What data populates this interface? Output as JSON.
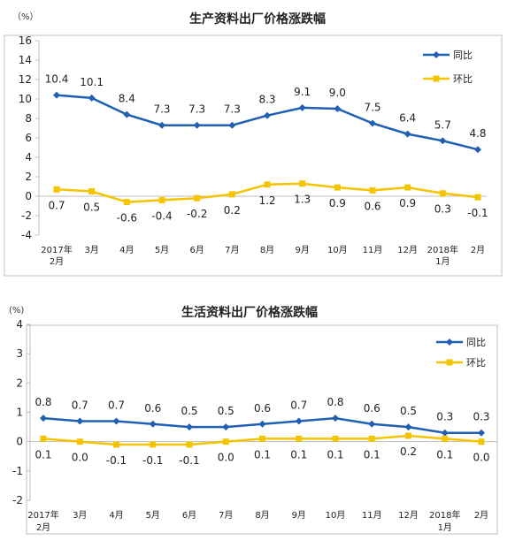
{
  "chart_data": [
    {
      "type": "line",
      "title": "生产资料出厂价格涨跌幅",
      "unit": "（%）",
      "ylim": [
        -4,
        16
      ],
      "yticks": [
        "16",
        "14",
        "12",
        "10",
        "8",
        "6",
        "4",
        "2",
        "0",
        "-2",
        "-4"
      ],
      "categories": [
        [
          "2017年",
          "2月"
        ],
        [
          "3月"
        ],
        [
          "4月"
        ],
        [
          "5月"
        ],
        [
          "6月"
        ],
        [
          "7月"
        ],
        [
          "8月"
        ],
        [
          "9月"
        ],
        [
          "10月"
        ],
        [
          "11月"
        ],
        [
          "12月"
        ],
        [
          "2018年",
          "1月"
        ],
        [
          "2月"
        ]
      ],
      "series": [
        {
          "name": "同比",
          "color": "#1f5fb4",
          "marker": "diamond",
          "values": [
            10.4,
            10.1,
            8.4,
            7.3,
            7.3,
            7.3,
            8.3,
            9.1,
            9.0,
            7.5,
            6.4,
            5.7,
            4.8
          ],
          "labels": [
            "10.4",
            "10.1",
            "8.4",
            "7.3",
            "7.3",
            "7.3",
            "8.3",
            "9.1",
            "9.0",
            "7.5",
            "6.4",
            "5.7",
            "4.8"
          ],
          "label_pos": "above"
        },
        {
          "name": "环比",
          "color": "#f5c400",
          "marker": "square",
          "values": [
            0.7,
            0.5,
            -0.6,
            -0.4,
            -0.2,
            0.2,
            1.2,
            1.3,
            0.9,
            0.6,
            0.9,
            0.3,
            -0.1
          ],
          "labels": [
            "0.7",
            "0.5",
            "-0.6",
            "-0.4",
            "-0.2",
            "0.2",
            "1.2",
            "1.3",
            "0.9",
            "0.6",
            "0.9",
            "0.3",
            "-0.1"
          ],
          "label_pos": "below"
        }
      ],
      "legend_position": "top-right",
      "grid": false
    },
    {
      "type": "line",
      "title": "生活资料出厂价格涨跌幅",
      "unit": "(%)",
      "ylim": [
        -2,
        4
      ],
      "yticks": [
        "4",
        "3",
        "2",
        "1",
        "0",
        "-1",
        "-2"
      ],
      "categories": [
        [
          "2017年",
          "2月"
        ],
        [
          "3月"
        ],
        [
          "4月"
        ],
        [
          "5月"
        ],
        [
          "6月"
        ],
        [
          "7月"
        ],
        [
          "8月"
        ],
        [
          "9月"
        ],
        [
          "10月"
        ],
        [
          "11月"
        ],
        [
          "12月"
        ],
        [
          "2018年",
          "1月"
        ],
        [
          "2月"
        ]
      ],
      "series": [
        {
          "name": "同比",
          "color": "#1f5fb4",
          "marker": "diamond",
          "values": [
            0.8,
            0.7,
            0.7,
            0.6,
            0.5,
            0.5,
            0.6,
            0.7,
            0.8,
            0.6,
            0.5,
            0.3,
            0.3
          ],
          "labels": [
            "0.8",
            "0.7",
            "0.7",
            "0.6",
            "0.5",
            "0.5",
            "0.6",
            "0.7",
            "0.8",
            "0.6",
            "0.5",
            "0.3",
            "0.3"
          ],
          "label_pos": "above"
        },
        {
          "name": "环比",
          "color": "#f5c400",
          "marker": "square",
          "values": [
            0.1,
            0.0,
            -0.1,
            -0.1,
            -0.1,
            0.0,
            0.1,
            0.1,
            0.1,
            0.1,
            0.2,
            0.1,
            0.0
          ],
          "labels": [
            "0.1",
            "0.0",
            "-0.1",
            "-0.1",
            "-0.1",
            "0.0",
            "0.1",
            "0.1",
            "0.1",
            "0.1",
            "0.2",
            "0.1",
            "0.0"
          ],
          "label_pos": "below"
        }
      ],
      "legend_position": "top-right",
      "grid": false
    }
  ]
}
